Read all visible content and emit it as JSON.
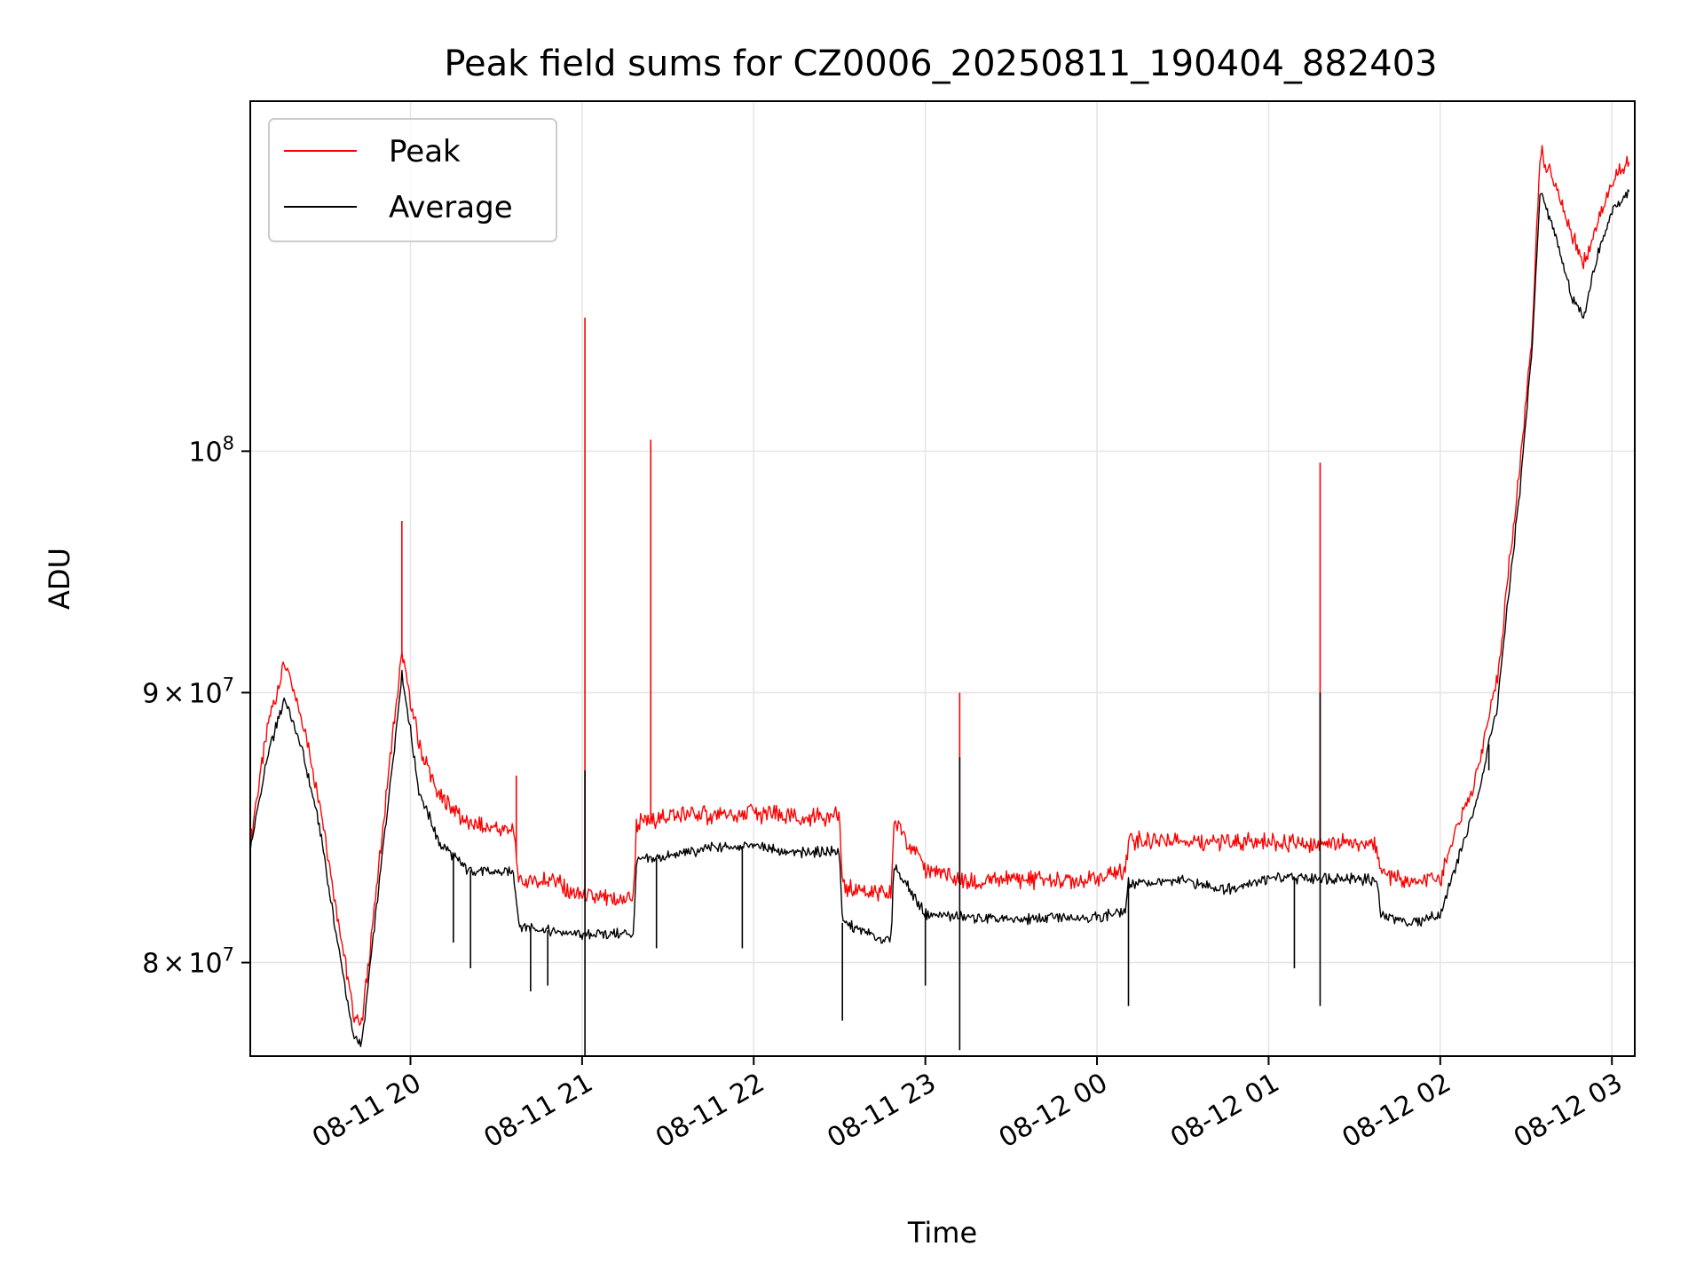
{
  "chart_data": {
    "type": "line",
    "title": "Peak field sums for CZ0006_20250811_190404_882403",
    "xlabel": "Time",
    "ylabel": "ADU",
    "yscale": "log",
    "xlim": [
      "2025-08-11 19:04",
      "2025-08-12 03:08"
    ],
    "ylim": [
      76800000,
      116500000
    ],
    "grid": true,
    "legend_position": "upper-left",
    "x_ticks": [
      {
        "x": "2025-08-11 20:00",
        "label": "08-11 20"
      },
      {
        "x": "2025-08-11 21:00",
        "label": "08-11 21"
      },
      {
        "x": "2025-08-11 22:00",
        "label": "08-11 22"
      },
      {
        "x": "2025-08-11 23:00",
        "label": "08-11 23"
      },
      {
        "x": "2025-08-12 00:00",
        "label": "08-12 00"
      },
      {
        "x": "2025-08-12 01:00",
        "label": "08-12 01"
      },
      {
        "x": "2025-08-12 02:00",
        "label": "08-12 02"
      },
      {
        "x": "2025-08-12 03:00",
        "label": "08-12 03"
      }
    ],
    "y_ticks": [
      {
        "y": 80000000,
        "base": "8",
        "exp": "7",
        "times": true
      },
      {
        "y": 90000000,
        "base": "9",
        "exp": "7",
        "times": true
      },
      {
        "y": 100000000,
        "base": "10",
        "exp": "8",
        "times": false
      }
    ],
    "series": [
      {
        "name": "Peak",
        "color": "#ff0000",
        "x": [
          "2025-08-11 19:04",
          "2025-08-11 19:10",
          "2025-08-11 19:16",
          "2025-08-11 19:22",
          "2025-08-11 19:28",
          "2025-08-11 19:34",
          "2025-08-11 19:40",
          "2025-08-11 19:43",
          "2025-08-11 19:48",
          "2025-08-11 19:54",
          "2025-08-11 19:57",
          "2025-08-11 20:03",
          "2025-08-11 20:10",
          "2025-08-11 20:20",
          "2025-08-11 20:30",
          "2025-08-11 20:36",
          "2025-08-11 20:38",
          "2025-08-11 20:50",
          "2025-08-11 20:55",
          "2025-08-11 21:00",
          "2025-08-11 21:10",
          "2025-08-11 21:15",
          "2025-08-11 21:18",
          "2025-08-11 21:19",
          "2025-08-11 21:30",
          "2025-08-11 21:45",
          "2025-08-11 22:00",
          "2025-08-11 22:15",
          "2025-08-11 22:30",
          "2025-08-11 22:31",
          "2025-08-11 22:45",
          "2025-08-11 22:48",
          "2025-08-11 22:49",
          "2025-08-11 23:00",
          "2025-08-11 23:15",
          "2025-08-11 23:30",
          "2025-08-11 23:45",
          "2025-08-12 00:00",
          "2025-08-12 00:10",
          "2025-08-12 00:11",
          "2025-08-12 00:30",
          "2025-08-12 00:45",
          "2025-08-12 01:00",
          "2025-08-12 01:15",
          "2025-08-12 01:30",
          "2025-08-12 01:38",
          "2025-08-12 01:39",
          "2025-08-12 01:50",
          "2025-08-12 02:00",
          "2025-08-12 02:05",
          "2025-08-12 02:12",
          "2025-08-12 02:20",
          "2025-08-12 02:28",
          "2025-08-12 02:32",
          "2025-08-12 02:35",
          "2025-08-12 02:40",
          "2025-08-12 02:46",
          "2025-08-12 02:50",
          "2025-08-12 02:54",
          "2025-08-12 03:00",
          "2025-08-12 03:06"
        ],
        "y": [
          84300000,
          88600000,
          91200000,
          89000000,
          86000000,
          82000000,
          78300000,
          77900000,
          82500000,
          88500000,
          91500000,
          88000000,
          86000000,
          85000000,
          84800000,
          84700000,
          82800000,
          83000000,
          82500000,
          82300000,
          82200000,
          82200000,
          82400000,
          85000000,
          85300000,
          85300000,
          85400000,
          85200000,
          85300000,
          82700000,
          82400000,
          82400000,
          85200000,
          83300000,
          82800000,
          83000000,
          82900000,
          83000000,
          83300000,
          84400000,
          84400000,
          84300000,
          84300000,
          84300000,
          84300000,
          84200000,
          83200000,
          82800000,
          83000000,
          84600000,
          86500000,
          90500000,
          99500000,
          105000000,
          114000000,
          112500000,
          110000000,
          108500000,
          110000000,
          112500000,
          113500000
        ]
      },
      {
        "name": "Average",
        "color": "#000000",
        "x": [
          "2025-08-11 19:04",
          "2025-08-11 19:10",
          "2025-08-11 19:16",
          "2025-08-11 19:22",
          "2025-08-11 19:28",
          "2025-08-11 19:34",
          "2025-08-11 19:40",
          "2025-08-11 19:43",
          "2025-08-11 19:48",
          "2025-08-11 19:54",
          "2025-08-11 19:57",
          "2025-08-11 20:03",
          "2025-08-11 20:10",
          "2025-08-11 20:20",
          "2025-08-11 20:30",
          "2025-08-11 20:36",
          "2025-08-11 20:38",
          "2025-08-11 20:50",
          "2025-08-11 20:55",
          "2025-08-11 21:00",
          "2025-08-11 21:10",
          "2025-08-11 21:15",
          "2025-08-11 21:18",
          "2025-08-11 21:19",
          "2025-08-11 21:30",
          "2025-08-11 21:45",
          "2025-08-11 22:00",
          "2025-08-11 22:15",
          "2025-08-11 22:30",
          "2025-08-11 22:31",
          "2025-08-11 22:45",
          "2025-08-11 22:48",
          "2025-08-11 22:49",
          "2025-08-11 23:00",
          "2025-08-11 23:15",
          "2025-08-11 23:30",
          "2025-08-11 23:45",
          "2025-08-12 00:00",
          "2025-08-12 00:10",
          "2025-08-12 00:11",
          "2025-08-12 00:30",
          "2025-08-12 00:45",
          "2025-08-12 01:00",
          "2025-08-12 01:15",
          "2025-08-12 01:30",
          "2025-08-12 01:38",
          "2025-08-12 01:39",
          "2025-08-12 01:50",
          "2025-08-12 02:00",
          "2025-08-12 02:05",
          "2025-08-12 02:12",
          "2025-08-12 02:20",
          "2025-08-12 02:28",
          "2025-08-12 02:32",
          "2025-08-12 02:35",
          "2025-08-12 02:40",
          "2025-08-12 02:46",
          "2025-08-12 02:50",
          "2025-08-12 02:54",
          "2025-08-12 03:00",
          "2025-08-12 03:06"
        ],
        "y": [
          84000000,
          87500000,
          89800000,
          87800000,
          85000000,
          81000000,
          77500000,
          77200000,
          81800000,
          87500000,
          90800000,
          86200000,
          84300000,
          83300000,
          83200000,
          83200000,
          81300000,
          81100000,
          81000000,
          81000000,
          81000000,
          81000000,
          81000000,
          83600000,
          83800000,
          84100000,
          84200000,
          83900000,
          84000000,
          81400000,
          80800000,
          80800000,
          83500000,
          81700000,
          81600000,
          81500000,
          81600000,
          81600000,
          81800000,
          82800000,
          82900000,
          82600000,
          83000000,
          83000000,
          83000000,
          82900000,
          81700000,
          81400000,
          81700000,
          83300000,
          85500000,
          89500000,
          98500000,
          104500000,
          112000000,
          110000000,
          107000000,
          106000000,
          108500000,
          111000000,
          112000000
        ]
      }
    ],
    "spikes": [
      {
        "series": "Peak",
        "x": "2025-08-11 19:57",
        "y": 97000000
      },
      {
        "series": "Peak",
        "x": "2025-08-11 21:01",
        "y": 106000000
      },
      {
        "series": "Peak",
        "x": "2025-08-11 21:24",
        "y": 100500000
      },
      {
        "series": "Peak",
        "x": "2025-08-11 23:12",
        "y": 90000000
      },
      {
        "series": "Peak",
        "x": "2025-08-12 01:18",
        "y": 99500000
      },
      {
        "series": "Peak",
        "x": "2025-08-11 20:37",
        "y": 86800000
      },
      {
        "series": "Average",
        "x": "2025-08-11 21:01",
        "y": 87000000
      },
      {
        "series": "Average",
        "x": "2025-08-11 23:12",
        "y": 87500000
      },
      {
        "series": "Average",
        "x": "2025-08-12 01:18",
        "y": 90000000
      },
      {
        "series": "Average",
        "x": "2025-08-12 02:17",
        "y": 87000000
      },
      {
        "series": "Average",
        "x": "2025-08-11 21:01",
        "y": 76800000
      },
      {
        "series": "Average",
        "x": "2025-08-11 23:12",
        "y": 77000000
      },
      {
        "series": "Average",
        "x": "2025-08-11 22:31",
        "y": 78000000
      },
      {
        "series": "Average",
        "x": "2025-08-12 01:18",
        "y": 78500000
      },
      {
        "series": "Average",
        "x": "2025-08-12 00:11",
        "y": 78500000
      },
      {
        "series": "Average",
        "x": "2025-08-11 20:42",
        "y": 79000000
      },
      {
        "series": "Average",
        "x": "2025-08-11 20:48",
        "y": 79200000
      },
      {
        "series": "Average",
        "x": "2025-08-11 23:00",
        "y": 79200000
      },
      {
        "series": "Average",
        "x": "2025-08-12 01:09",
        "y": 79800000
      },
      {
        "series": "Average",
        "x": "2025-08-11 20:21",
        "y": 79800000
      },
      {
        "series": "Average",
        "x": "2025-08-11 20:15",
        "y": 80700000
      },
      {
        "series": "Average",
        "x": "2025-08-11 21:26",
        "y": 80500000
      },
      {
        "series": "Average",
        "x": "2025-08-11 21:56",
        "y": 80500000
      }
    ]
  }
}
